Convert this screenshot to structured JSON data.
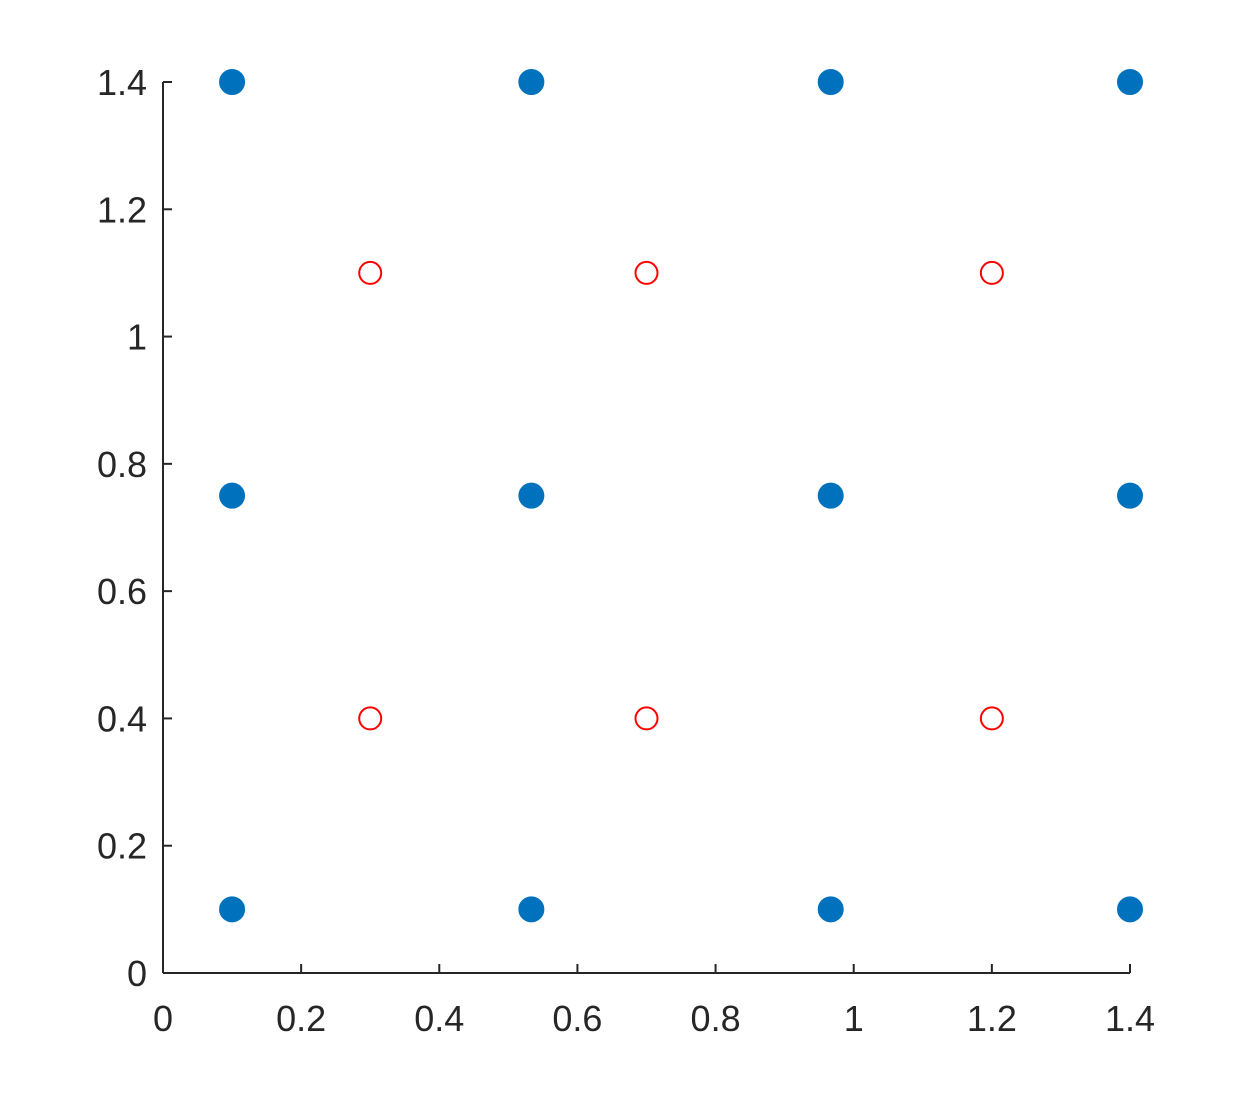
{
  "chart_data": {
    "type": "scatter",
    "series": [
      {
        "color": "#0072bd",
        "filled": true,
        "x": [
          0.1,
          0.5333,
          0.9667,
          1.4,
          0.1,
          0.5333,
          0.9667,
          1.4,
          0.1,
          0.5333,
          0.9667,
          1.4
        ],
        "y": [
          0.1,
          0.1,
          0.1,
          0.1,
          0.75,
          0.75,
          0.75,
          0.75,
          1.4,
          1.4,
          1.4,
          1.4
        ]
      },
      {
        "color": "#ff0000",
        "filled": false,
        "x": [
          0.3,
          0.7,
          1.2,
          0.3,
          0.7,
          1.2
        ],
        "y": [
          0.4,
          0.4,
          0.4,
          1.1,
          1.1,
          1.1
        ]
      }
    ],
    "xlim": [
      0,
      1.4
    ],
    "ylim": [
      0,
      1.4
    ],
    "xticks": [
      0,
      0.2,
      0.4,
      0.6,
      0.8,
      1,
      1.2,
      1.4
    ],
    "yticks": [
      0,
      0.2,
      0.4,
      0.6,
      0.8,
      1,
      1.2,
      1.4
    ],
    "grid": false
  }
}
